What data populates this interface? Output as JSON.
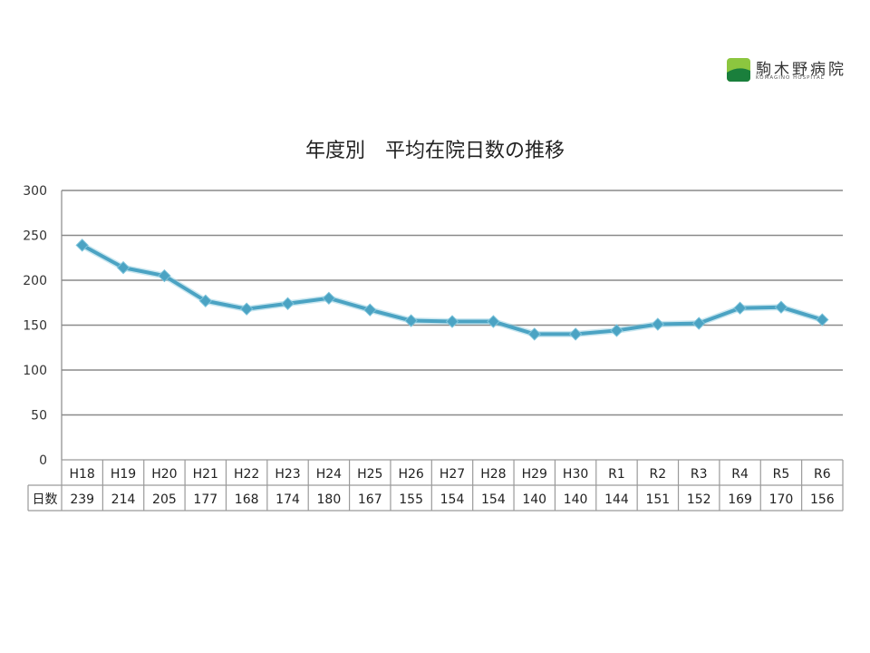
{
  "logo": {
    "name": "駒木野病院",
    "subtitle": "KOMAGINO HOSPITAL",
    "colors": [
      "#8cc63f",
      "#1a7f3c"
    ]
  },
  "chart_data": {
    "type": "line",
    "title": "年度別　平均在院日数の推移",
    "categories": [
      "H18",
      "H19",
      "H20",
      "H21",
      "H22",
      "H23",
      "H24",
      "H25",
      "H26",
      "H27",
      "H28",
      "H29",
      "H30",
      "R1",
      "R2",
      "R3",
      "R4",
      "R5",
      "R6"
    ],
    "values": [
      239,
      214,
      205,
      177,
      168,
      174,
      180,
      167,
      155,
      154,
      154,
      140,
      140,
      144,
      151,
      152,
      169,
      170,
      156
    ],
    "row_label": "日数",
    "ylim": [
      0,
      300
    ],
    "yticks": [
      0,
      50,
      100,
      150,
      200,
      250,
      300
    ],
    "grid": true,
    "line_color": "#4ba3c3"
  }
}
